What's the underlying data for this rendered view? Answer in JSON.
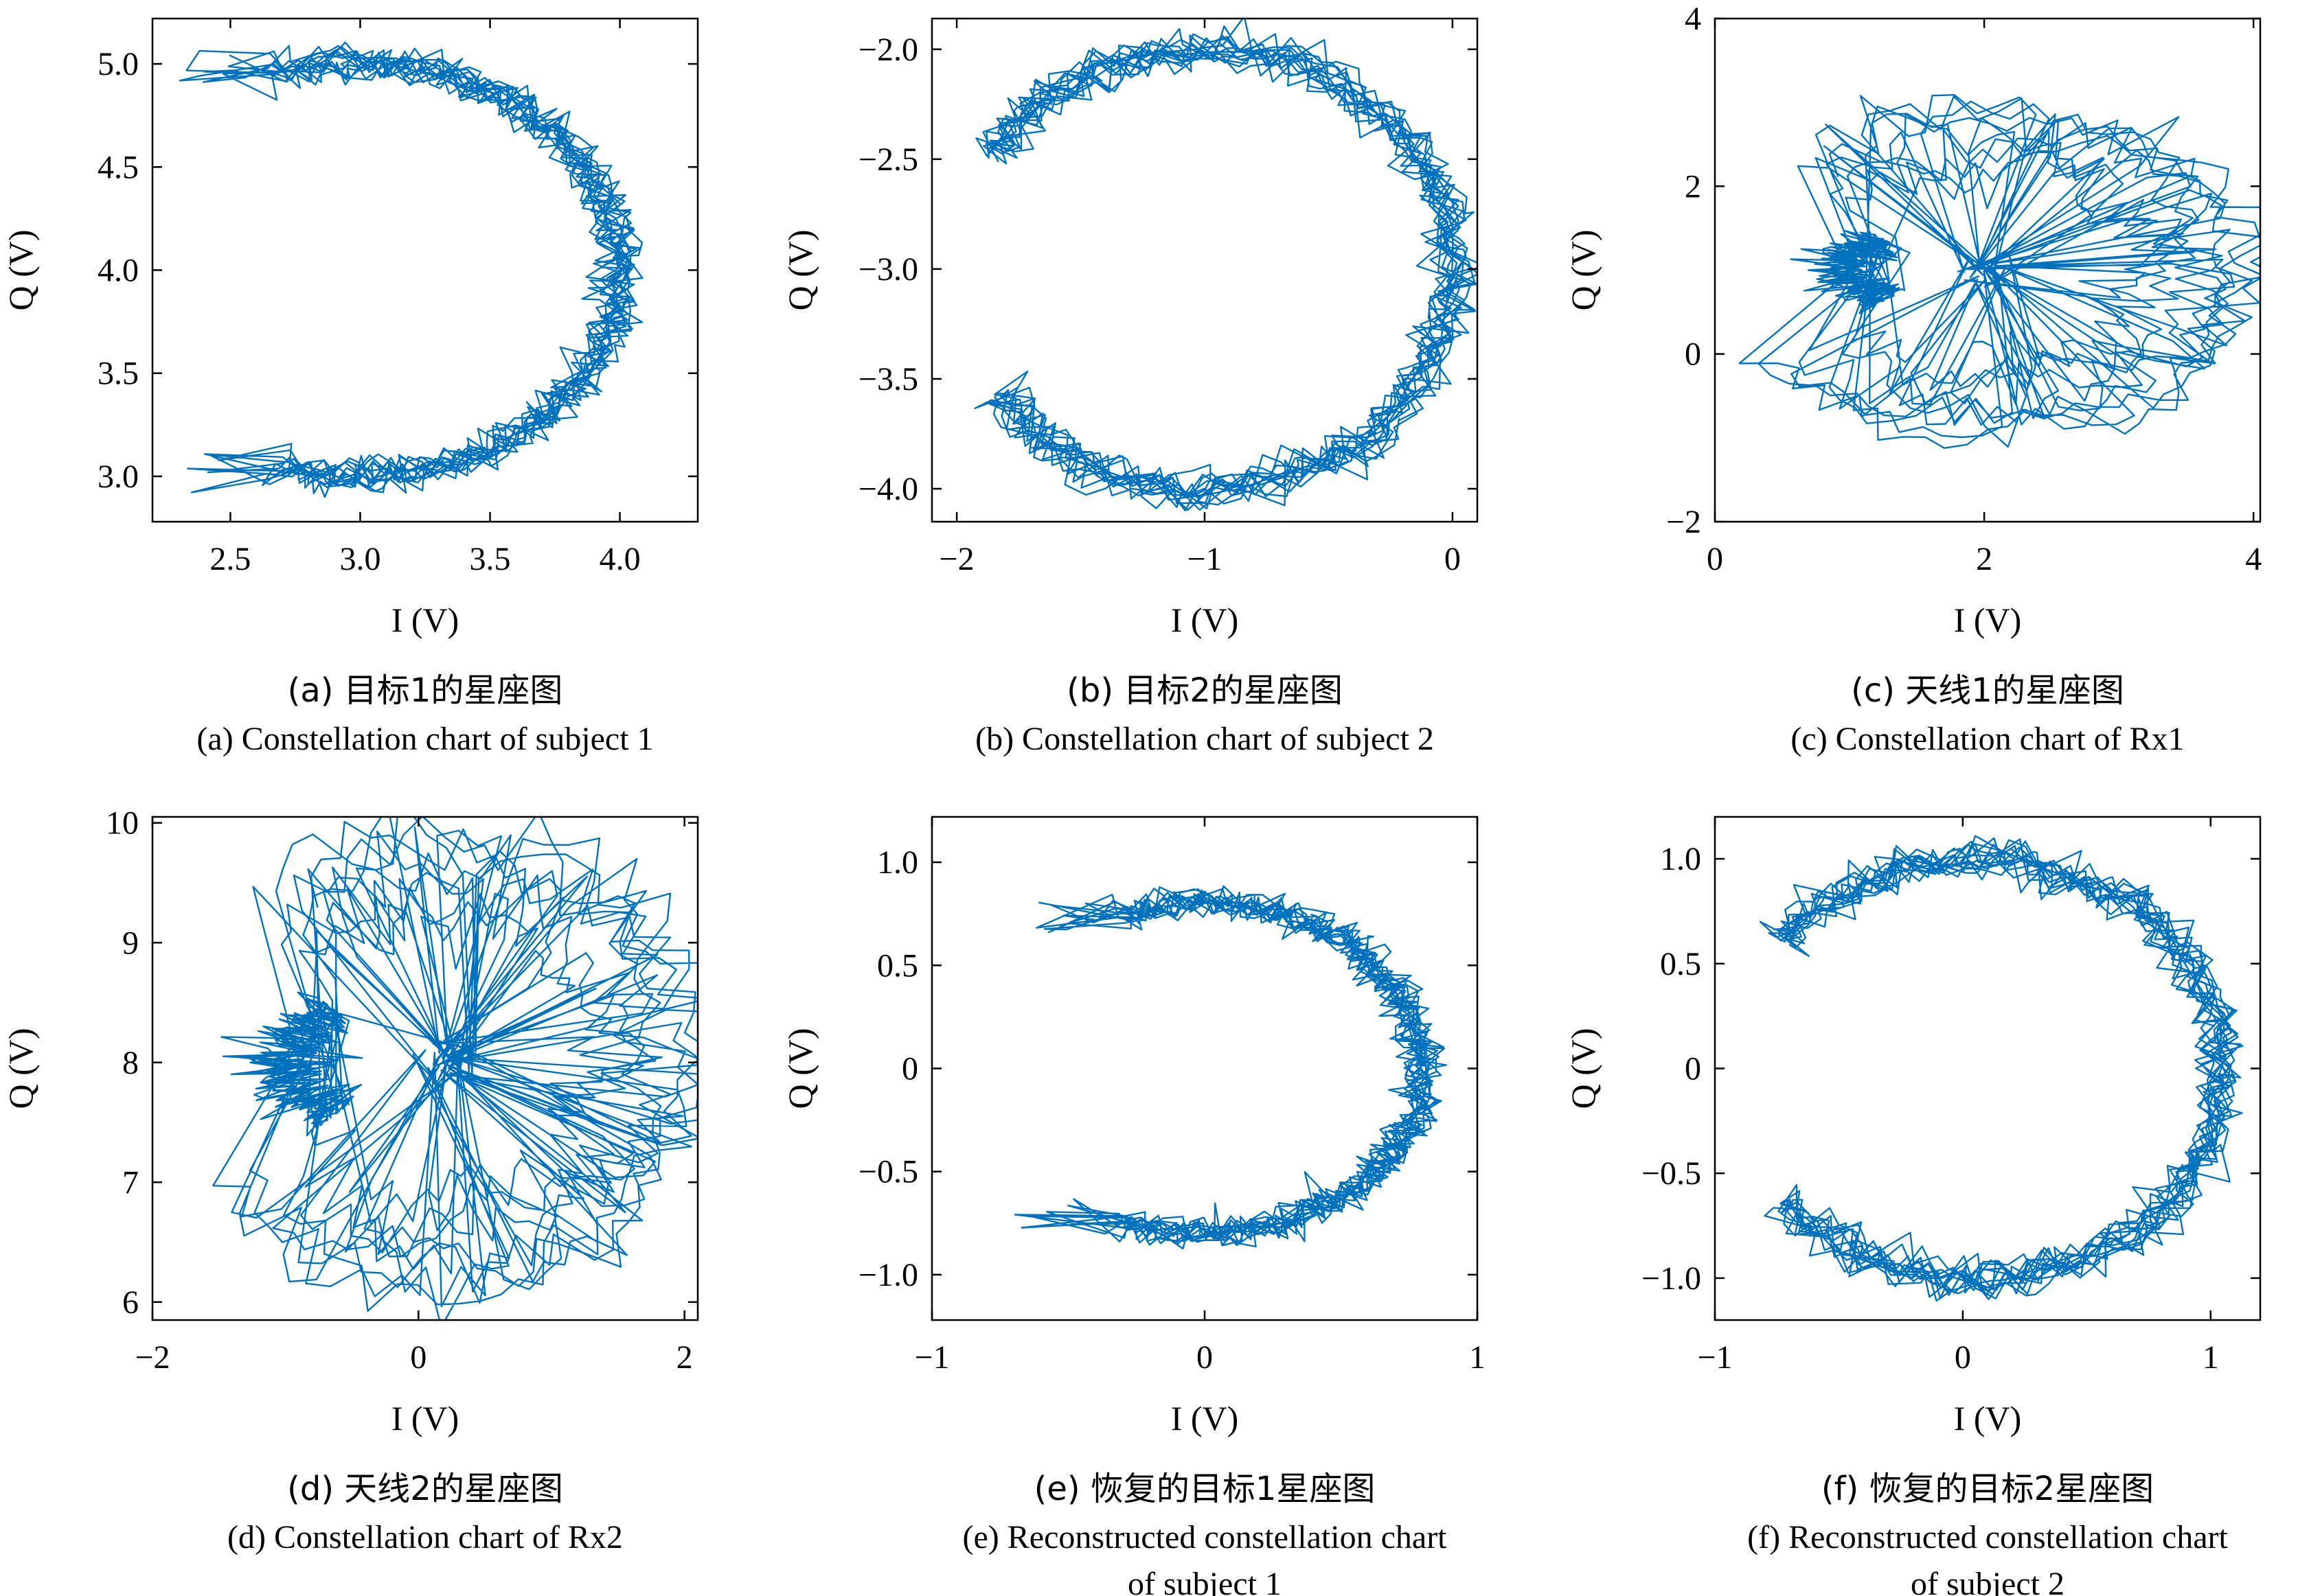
{
  "chart_data": [
    {
      "id": "a",
      "type": "line",
      "xlabel": "I (V)",
      "ylabel": "Q (V)",
      "xlim": [
        2.2,
        4.3
      ],
      "ylim": [
        2.78,
        5.22
      ],
      "xticks": [
        2.5,
        3.0,
        3.5,
        4.0
      ],
      "xtick_labels": [
        "2.5",
        "3.0",
        "3.5",
        "4.0"
      ],
      "yticks": [
        3.0,
        3.5,
        4.0,
        4.5,
        5.0
      ],
      "ytick_labels": [
        "3.0",
        "3.5",
        "4.0",
        "4.5",
        "5.0"
      ],
      "caption_cn": "(a) 目标1的星座图",
      "caption_en": [
        "(a) Constellation chart of subject 1"
      ],
      "series_color": "#0072BD",
      "trace": {
        "kind": "arc",
        "center": [
          3.0,
          4.0
        ],
        "radius": 1.0,
        "angle_range_deg": [
          108,
          -108
        ],
        "noise": 0.045,
        "end_extension": 0.45,
        "passes": 14
      }
    },
    {
      "id": "b",
      "type": "line",
      "xlabel": "I (V)",
      "ylabel": "Q (V)",
      "xlim": [
        -2.1,
        0.1
      ],
      "ylim": [
        -4.15,
        -1.86
      ],
      "xticks": [
        -2,
        -1,
        0
      ],
      "xtick_labels": [
        "−2",
        "−1",
        "0"
      ],
      "yticks": [
        -4.0,
        -3.5,
        -3.0,
        -2.5,
        -2.0
      ],
      "ytick_labels": [
        "−4.0",
        "−3.5",
        "−3.0",
        "−2.5",
        "−2.0"
      ],
      "caption_cn": "(b) 目标2的星座图",
      "caption_en": [
        "(b) Constellation chart of subject 2"
      ],
      "series_color": "#0072BD",
      "trace": {
        "kind": "arc",
        "center": [
          -1.0,
          -3.0
        ],
        "radius": 1.0,
        "angle_range_deg": [
          148,
          -145
        ],
        "noise": 0.05,
        "end_extension": 0.0,
        "passes": 14
      }
    },
    {
      "id": "c",
      "type": "line",
      "xlabel": "I (V)",
      "ylabel": "Q (V)",
      "xlim": [
        0,
        4.05
      ],
      "ylim": [
        -2,
        4
      ],
      "xticks": [
        0,
        2,
        4
      ],
      "xtick_labels": [
        "0",
        "2",
        "4"
      ],
      "yticks": [
        -2,
        0,
        2,
        4
      ],
      "ytick_labels": [
        "−2",
        "0",
        "2",
        "4"
      ],
      "caption_cn": "(c) 天线1的星座图",
      "caption_en": [
        "(c) Constellation chart of Rx1"
      ],
      "series_color": "#0072BD",
      "trace": {
        "kind": "mixture",
        "center": [
          2.0,
          1.0
        ],
        "outer_radius": [
          1.9,
          2.0
        ],
        "inner_radius": 0.75,
        "noise": 0.15,
        "passes": 10
      }
    },
    {
      "id": "d",
      "type": "line",
      "xlabel": "I (V)",
      "ylabel": "Q (V)",
      "xlim": [
        -2.0,
        2.1
      ],
      "ylim": [
        5.85,
        10.05
      ],
      "xticks": [
        -2,
        0,
        2
      ],
      "xtick_labels": [
        "−2",
        "0",
        "2"
      ],
      "yticks": [
        6,
        7,
        8,
        9,
        10
      ],
      "ytick_labels": [
        "6",
        "7",
        "8",
        "9",
        "10"
      ],
      "caption_cn": "(d) 天线2的星座图",
      "caption_en": [
        "(d) Constellation chart of Rx2"
      ],
      "series_color": "#0072BD",
      "trace": {
        "kind": "mixture",
        "center": [
          0.2,
          8.0
        ],
        "outer_radius": [
          1.85,
          2.0
        ],
        "inner_radius": 0.9,
        "noise": 0.18,
        "passes": 10
      }
    },
    {
      "id": "e",
      "type": "line",
      "xlabel": "I (V)",
      "ylabel": "Q (V)",
      "xlim": [
        -1.0,
        1.0
      ],
      "ylim": [
        -1.22,
        1.22
      ],
      "xticks": [
        -1,
        0,
        1
      ],
      "xtick_labels": [
        "−1",
        "0",
        "1"
      ],
      "yticks": [
        -1.0,
        -0.5,
        0,
        0.5,
        1.0
      ],
      "ytick_labels": [
        "−1.0",
        "−0.5",
        "0",
        "0.5",
        "1.0"
      ],
      "caption_cn": "(e) 恢复的目标1星座图",
      "caption_en": [
        "(e) Reconstructed constellation chart",
        "of subject 1"
      ],
      "series_color": "#0072BD",
      "trace": {
        "kind": "arc",
        "center": [
          0.0,
          0.0
        ],
        "radius": 0.8,
        "angle_range_deg": [
          112,
          -112
        ],
        "noise": 0.04,
        "end_extension": 0.4,
        "passes": 14
      }
    },
    {
      "id": "f",
      "type": "line",
      "xlabel": "I (V)",
      "ylabel": "Q (V)",
      "xlim": [
        -1.0,
        1.2
      ],
      "ylim": [
        -1.2,
        1.2
      ],
      "xticks": [
        -1,
        0,
        1
      ],
      "xtick_labels": [
        "−1",
        "0",
        "1"
      ],
      "yticks": [
        -1.0,
        -0.5,
        0,
        0.5,
        1.0
      ],
      "ytick_labels": [
        "−1.0",
        "−0.5",
        "0",
        "0.5",
        "1.0"
      ],
      "caption_cn": "(f) 恢复的目标2星座图",
      "caption_en": [
        "(f) Reconstructed constellation chart",
        "of subject 2"
      ],
      "series_color": "#0072BD",
      "trace": {
        "kind": "arc",
        "center": [
          0.05,
          0.0
        ],
        "radius": 1.0,
        "angle_range_deg": [
          142,
          -140
        ],
        "noise": 0.05,
        "end_extension": 0.0,
        "passes": 14
      }
    }
  ]
}
